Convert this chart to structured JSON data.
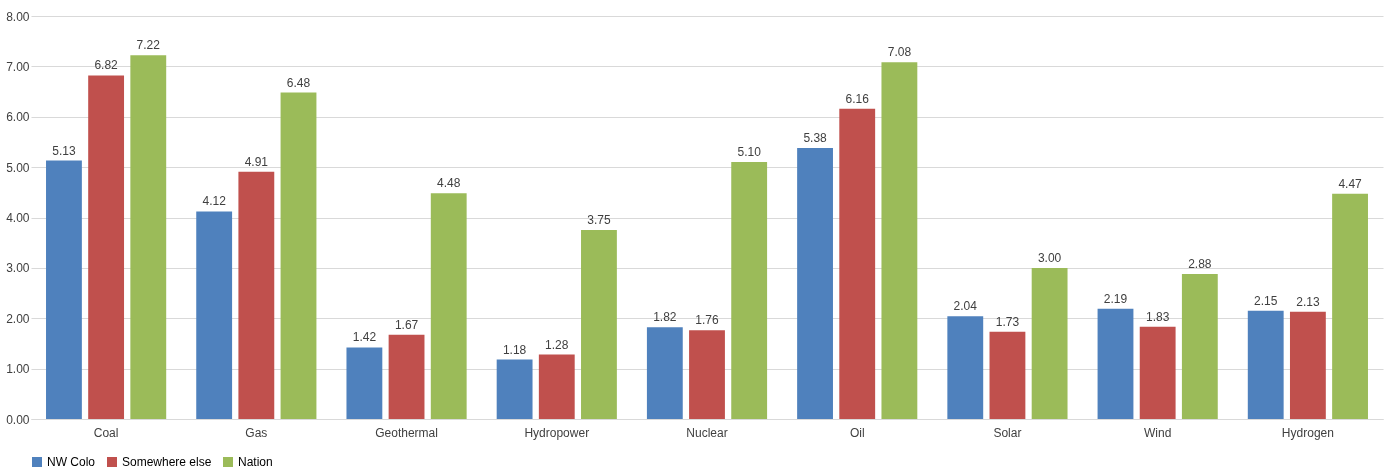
{
  "chart_data": {
    "type": "bar",
    "categories": [
      "Coal",
      "Gas",
      "Geothermal",
      "Hydropower",
      "Nuclear",
      "Oil",
      "Solar",
      "Wind",
      "Hydrogen"
    ],
    "series": [
      {
        "name": "NW Colo",
        "color": "#4f81bd",
        "values": [
          5.13,
          4.12,
          1.42,
          1.18,
          1.82,
          5.38,
          2.04,
          2.19,
          2.15
        ],
        "value_labels": [
          "5.13",
          "4.12",
          "1.42",
          "1.18",
          "1.82",
          "5.38",
          "2.04",
          "2.19",
          "2.15"
        ]
      },
      {
        "name": "Somewhere else",
        "color": "#c0504d",
        "values": [
          6.82,
          4.91,
          1.67,
          1.28,
          1.76,
          6.16,
          1.73,
          1.83,
          2.13
        ],
        "value_labels": [
          "6.82",
          "4.91",
          "1.67",
          "1.28",
          "1.76",
          "6.16",
          "1.73",
          "1.83",
          "2.13"
        ]
      },
      {
        "name": "Nation",
        "color": "#9bbb59",
        "values": [
          7.22,
          6.48,
          4.48,
          3.75,
          5.1,
          7.08,
          3.0,
          2.88,
          4.47
        ],
        "value_labels": [
          "7.22",
          "6.48",
          "4.48",
          "3.75",
          "5.10",
          "7.08",
          "3.00",
          "2.88",
          "4.47"
        ]
      }
    ],
    "ylim": [
      0,
      8
    ],
    "yticks": [
      {
        "value": 0,
        "label": "0.00"
      },
      {
        "value": 1,
        "label": "1.00"
      },
      {
        "value": 2,
        "label": "2.00"
      },
      {
        "value": 3,
        "label": "3.00"
      },
      {
        "value": 4,
        "label": "4.00"
      },
      {
        "value": 5,
        "label": "5.00"
      },
      {
        "value": 6,
        "label": "6.00"
      },
      {
        "value": 7,
        "label": "7.00"
      },
      {
        "value": 8,
        "label": "8.00"
      }
    ],
    "grid": "y",
    "legend": "bottom"
  }
}
